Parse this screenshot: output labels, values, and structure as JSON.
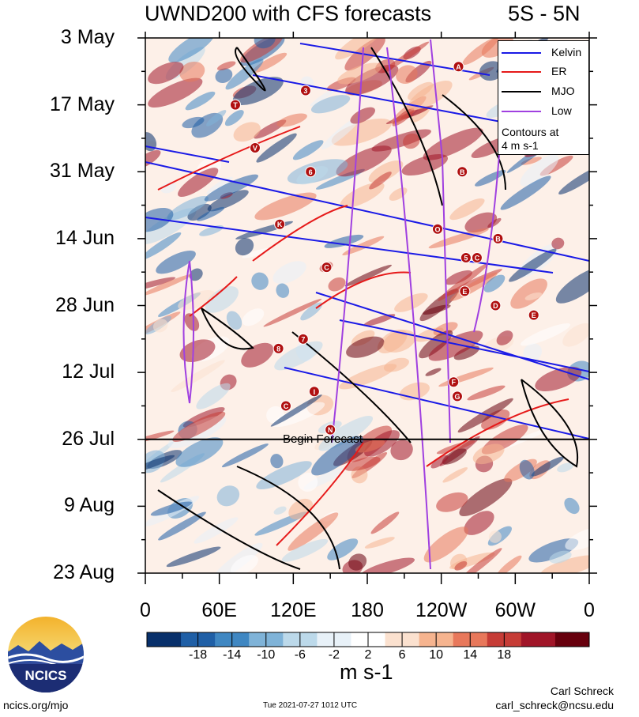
{
  "header": {
    "title": "UWND200 with CFS forecasts",
    "region": "5S - 5N"
  },
  "chart_data": {
    "type": "heatmap",
    "title": "UWND200 with CFS forecasts",
    "subtitle": "5S - 5N",
    "x_ticks": [
      "0",
      "60E",
      "120E",
      "180",
      "120W",
      "60W",
      "0"
    ],
    "y_ticks": [
      "3 May",
      "17 May",
      "31 May",
      "14 Jun",
      "28 Jun",
      "12 Jul",
      "26 Jul",
      "9 Aug",
      "23 Aug"
    ],
    "xlim": [
      0,
      360
    ],
    "ylim": [
      "2021-05-03",
      "2021-08-23"
    ],
    "forecast_start": "2021-07-26",
    "forecast_label": "Begin Forecast",
    "units": "m s-1",
    "colorbar": {
      "labels": [
        "-18",
        "-14",
        "-10",
        "-6",
        "-2",
        "2",
        "6",
        "10",
        "14",
        "18"
      ],
      "colors": [
        "#08306b",
        "#1f5fa6",
        "#3f87c2",
        "#7fb3d8",
        "#bcd9ea",
        "#e8f1f8",
        "#ffffff",
        "#fbe1cf",
        "#f6b48f",
        "#e8785b",
        "#c63c36",
        "#a01528",
        "#67000d"
      ]
    },
    "legend": {
      "position": "top-right",
      "entries": [
        {
          "name": "Kelvin",
          "color": "#1a1ae6"
        },
        {
          "name": "ER",
          "color": "#e61a1a"
        },
        {
          "name": "MJO",
          "color": "#000000"
        },
        {
          "name": "Low",
          "color": "#a040e0"
        }
      ],
      "note": [
        "Contours at",
        "4 m s-1"
      ]
    },
    "storm_markers": [
      {
        "label": "A",
        "lon": 254,
        "date": "2021-05-09"
      },
      {
        "label": "3",
        "lon": 130,
        "date": "2021-05-14"
      },
      {
        "label": "T",
        "lon": 73,
        "date": "2021-05-17"
      },
      {
        "label": "V",
        "lon": 89,
        "date": "2021-05-26"
      },
      {
        "label": "6",
        "lon": 134,
        "date": "2021-05-31"
      },
      {
        "label": "B",
        "lon": 257,
        "date": "2021-05-31"
      },
      {
        "label": "K",
        "lon": 109,
        "date": "2021-06-11"
      },
      {
        "label": "O",
        "lon": 237,
        "date": "2021-06-12"
      },
      {
        "label": "B",
        "lon": 286,
        "date": "2021-06-14"
      },
      {
        "label": "5",
        "lon": 260,
        "date": "2021-06-18"
      },
      {
        "label": "C",
        "lon": 269,
        "date": "2021-06-18"
      },
      {
        "label": "C",
        "lon": 147,
        "date": "2021-06-20"
      },
      {
        "label": "E",
        "lon": 259,
        "date": "2021-06-25"
      },
      {
        "label": "D",
        "lon": 284,
        "date": "2021-06-28"
      },
      {
        "label": "E",
        "lon": 315,
        "date": "2021-06-30"
      },
      {
        "label": "7",
        "lon": 128,
        "date": "2021-07-05"
      },
      {
        "label": "8",
        "lon": 108,
        "date": "2021-07-07"
      },
      {
        "label": "F",
        "lon": 250,
        "date": "2021-07-14"
      },
      {
        "label": "I",
        "lon": 137,
        "date": "2021-07-16"
      },
      {
        "label": "G",
        "lon": 253,
        "date": "2021-07-17"
      },
      {
        "label": "C",
        "lon": 114,
        "date": "2021-07-19"
      },
      {
        "label": "N",
        "lon": 150,
        "date": "2021-07-24"
      }
    ]
  },
  "logo": {
    "text": "NCICS"
  },
  "footer": {
    "url": "ncics.org/mjo",
    "timestamp": "Tue 2021-07-27 1012 UTC",
    "author": "Carl Schreck",
    "email": "carl_schreck@ncsu.edu"
  }
}
